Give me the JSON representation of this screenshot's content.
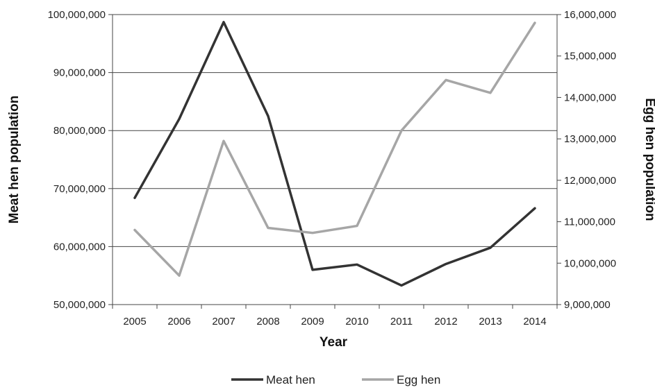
{
  "chart_data": {
    "type": "line",
    "title": "",
    "xlabel": "Year",
    "ylabel": "Meat hen population",
    "y2label": "Egg hen population",
    "categories": [
      "2005",
      "2006",
      "2007",
      "2008",
      "2009",
      "2010",
      "2011",
      "2012",
      "2013",
      "2014"
    ],
    "ylim": [
      50000000,
      100000000
    ],
    "y2lim": [
      9000000,
      16000000
    ],
    "yticks": [
      "50,000,000",
      "60,000,000",
      "70,000,000",
      "80,000,000",
      "90,000,000",
      "100,000,000"
    ],
    "y2ticks": [
      "9,000,000",
      "10,000,000",
      "11,000,000",
      "12,000,000",
      "13,000,000",
      "14,000,000",
      "15,000,000",
      "16,000,000"
    ],
    "grid": true,
    "legend_position": "bottom",
    "series": [
      {
        "name": "Meat hen",
        "axis": "left",
        "color": "#333333",
        "values": [
          68400000,
          82000000,
          98700000,
          82500000,
          56000000,
          56900000,
          53300000,
          57000000,
          59800000,
          66600000
        ]
      },
      {
        "name": "Egg hen",
        "axis": "right",
        "color": "#a6a6a6",
        "values": [
          10800000,
          9700000,
          12950000,
          10850000,
          10730000,
          10900000,
          13200000,
          14420000,
          14110000,
          15800000
        ]
      }
    ]
  }
}
